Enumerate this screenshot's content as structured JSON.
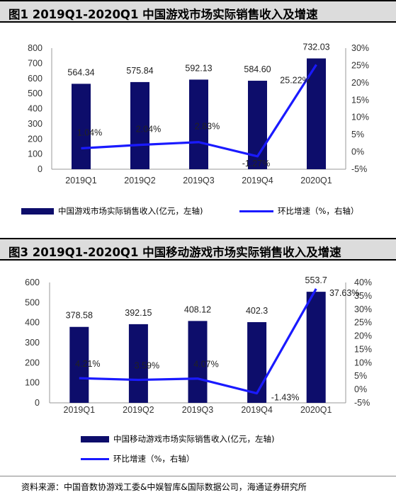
{
  "figures": [
    {
      "title": "图1   2019Q1-2020Q1 中国游戏市场实际销售收入及增速",
      "legend_bar": "中国游戏市场实际销售收入(亿元，左轴)",
      "legend_line": "环比增速（%，右轴）",
      "colors": {
        "bar": "#0d0d6b",
        "line": "#1a1aff"
      }
    },
    {
      "title": "图3   2019Q1-2020Q1 中国移动游戏市场实际销售收入及增速",
      "legend_bar": "中国移动游戏市场实际销售收入(亿元，左轴)",
      "legend_line": "环比增速（%，右轴）",
      "colors": {
        "bar": "#0d0d6b",
        "line": "#1a1aff"
      }
    }
  ],
  "chart_data": [
    {
      "type": "bar",
      "categories": [
        "2019Q1",
        "2019Q2",
        "2019Q3",
        "2019Q4",
        "2020Q1"
      ],
      "series": [
        {
          "name": "中国游戏市场实际销售收入(亿元，左轴)",
          "type": "bar",
          "axis": "left",
          "values": [
            564.34,
            575.84,
            592.13,
            584.6,
            732.03
          ],
          "labels": [
            "564.34",
            "575.84",
            "592.13",
            "584.60",
            "732.03"
          ]
        },
        {
          "name": "环比增速（%，右轴）",
          "type": "line",
          "axis": "right",
          "values": [
            1.04,
            2.04,
            2.83,
            -1.27,
            25.22
          ],
          "labels": [
            "1.04%",
            "2.04%",
            "2.83%",
            "-1.27%",
            "25.22%"
          ]
        }
      ],
      "y_left": {
        "min": 0,
        "max": 800,
        "step": 100,
        "ticks": [
          "0",
          "100",
          "200",
          "300",
          "400",
          "500",
          "600",
          "700",
          "800"
        ]
      },
      "y_right": {
        "min": -5,
        "max": 30,
        "step": 5,
        "ticks": [
          "-5%",
          "0%",
          "5%",
          "10%",
          "15%",
          "20%",
          "25%",
          "30%"
        ]
      },
      "grid": false,
      "legend": "bottom"
    },
    {
      "type": "bar",
      "categories": [
        "2019Q1",
        "2019Q2",
        "2019Q3",
        "2019Q4",
        "2020Q1"
      ],
      "series": [
        {
          "name": "中国移动游戏市场实际销售收入(亿元，左轴)",
          "type": "bar",
          "axis": "left",
          "values": [
            378.58,
            392.15,
            408.12,
            402.3,
            553.7
          ],
          "labels": [
            "378.58",
            "392.15",
            "408.12",
            "402.3",
            "553.7"
          ]
        },
        {
          "name": "环比增速（%，右轴）",
          "type": "line",
          "axis": "right",
          "values": [
            4.21,
            3.59,
            4.07,
            -1.43,
            37.63
          ],
          "labels": [
            "4.21%",
            "3.59%",
            "4.07%",
            "-1.43%",
            "37.63%"
          ]
        }
      ],
      "y_left": {
        "min": 0,
        "max": 600,
        "step": 100,
        "ticks": [
          "0",
          "100",
          "200",
          "300",
          "400",
          "500",
          "600"
        ]
      },
      "y_right": {
        "min": -5,
        "max": 40,
        "step": 5,
        "ticks": [
          "-5%",
          "0%",
          "5%",
          "10%",
          "15%",
          "20%",
          "25%",
          "30%",
          "35%",
          "40%"
        ]
      },
      "grid": false,
      "legend": "bottom"
    }
  ],
  "source": "资料来源：中国音数协游戏工委&中娱智库&国际数据公司，海通证券研究所"
}
